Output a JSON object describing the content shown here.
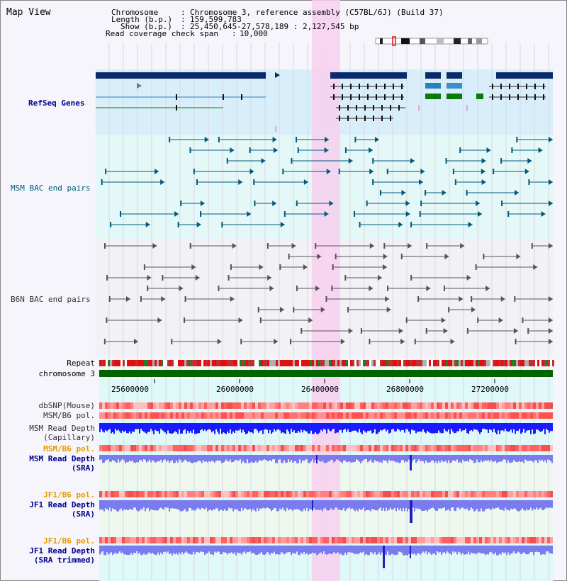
{
  "title": "Map View",
  "info": {
    "chromosome_key": "Chromosome",
    "chromosome_val": "Chromosome 3, reference assembly (C57BL/6J) (Build 37)",
    "length_key": "Length (b.p.)",
    "length_val": "159,599,783",
    "show_key": "Show (b.p.)",
    "show_val": "25,450,645-27,578,189 : 2,127,545 bp",
    "coverage_key": "Read coverage check span",
    "coverage_val": "10,000"
  },
  "tracks": {
    "refseq": "RefSeq Genes",
    "msm_bac": "MSM BAC end pairs",
    "b6n_bac": "B6N BAC end pairs",
    "repeat": "Repeat",
    "chromosome": "chromosome 3",
    "dbsnp": "dbSNP(Mouse)",
    "msm_b6_pol_1": "MSM/B6 pol.",
    "msm_read_depth_cap_1": "MSM Read Depth",
    "msm_read_depth_cap_2": "(Capillary)",
    "msm_b6_pol_2": "MSM/B6 pol.",
    "msm_read_depth_sra_1": "MSM Read Depth",
    "msm_read_depth_sra_2": "(SRA)",
    "jf1_b6_pol_1": "JF1/B6 pol.",
    "jf1_read_depth_sra_1": "JF1 Read Depth",
    "jf1_read_depth_sra_2": "(SRA)",
    "jf1_b6_pol_2": "JF1/B6 pol.",
    "jf1_read_depth_trim_1": "JF1 Read Depth",
    "jf1_read_depth_trim_2": "(SRA trimmed)"
  },
  "axis_ticks": [
    "25600000",
    "26000000",
    "26400000",
    "26800000",
    "27200000"
  ],
  "colors": {
    "gene_navy": "#0a2a6a",
    "msm_teal": "#005a7a",
    "b6n_gray": "#555555",
    "highlight": "#f8d0f0",
    "chromosome_green": "#006400",
    "depth_blue": "#1a1aff",
    "depth_light": "#7b7bf0",
    "pol_red": "#ff5a5a"
  }
}
